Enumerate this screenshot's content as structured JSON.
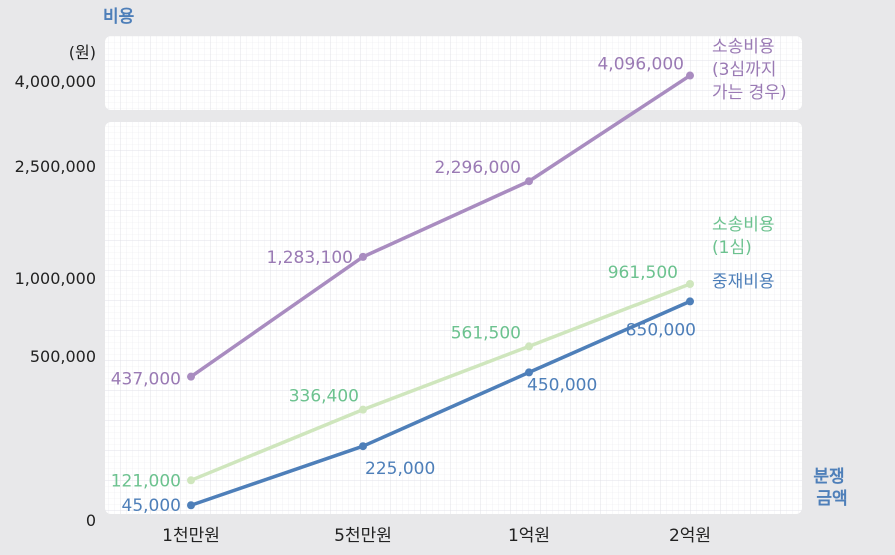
{
  "chart_data": {
    "type": "line",
    "y_title": "비용",
    "y_unit": "(원)",
    "x_title_lines": [
      "분쟁",
      "금액"
    ],
    "categories": [
      "1천만원",
      "5천만원",
      "1억원",
      "2억원"
    ],
    "y_axis_break": true,
    "y_ticks": [
      {
        "value": 0,
        "label": "0"
      },
      {
        "value": 500000,
        "label": "500,000"
      },
      {
        "value": 1000000,
        "label": "1,000,000"
      },
      {
        "value": 2500000,
        "label": "2,500,000"
      },
      {
        "value": 4000000,
        "label": "4,000,000"
      }
    ],
    "series": [
      {
        "name_lines": [
          "소송비용",
          "(3심까지",
          "가는 경우)"
        ],
        "color": "#a98cc0",
        "label_color": "#9a7ab4",
        "values": [
          437000,
          1283100,
          2296000,
          4096000
        ],
        "value_labels": [
          "437,000",
          "1,283,100",
          "2,296,000",
          "4,096,000"
        ]
      },
      {
        "name_lines": [
          "소송비용",
          "(1심)"
        ],
        "color": "#cfe6bd",
        "label_color": "#6cc28f",
        "values": [
          121000,
          336400,
          561500,
          961500
        ],
        "value_labels": [
          "121,000",
          "336,400",
          "561,500",
          "961,500"
        ]
      },
      {
        "name_lines": [
          "중재비용"
        ],
        "color": "#4e7fb9",
        "label_color": "#4e7fb9",
        "values": [
          45000,
          225000,
          450000,
          850000
        ],
        "value_labels": [
          "45,000",
          "225,000",
          "450,000",
          "850,000"
        ]
      }
    ]
  }
}
